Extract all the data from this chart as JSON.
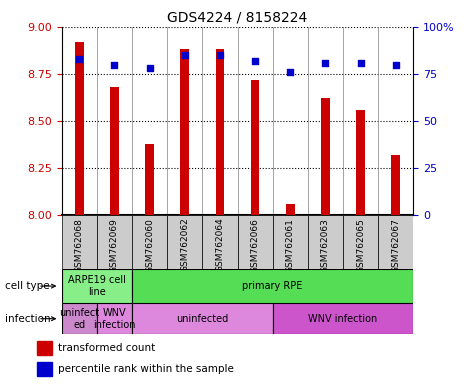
{
  "title": "GDS4224 / 8158224",
  "samples": [
    "GSM762068",
    "GSM762069",
    "GSM762060",
    "GSM762062",
    "GSM762064",
    "GSM762066",
    "GSM762061",
    "GSM762063",
    "GSM762065",
    "GSM762067"
  ],
  "transformed_counts": [
    8.92,
    8.68,
    8.38,
    8.88,
    8.88,
    8.72,
    8.06,
    8.62,
    8.56,
    8.32
  ],
  "percentile_ranks": [
    83,
    80,
    78,
    85,
    85,
    82,
    76,
    81,
    81,
    80
  ],
  "ylim": [
    8.0,
    9.0
  ],
  "y2lim": [
    0,
    100
  ],
  "y_ticks": [
    8.0,
    8.25,
    8.5,
    8.75,
    9.0
  ],
  "y2_ticks": [
    0,
    25,
    50,
    75,
    100
  ],
  "y2_labels": [
    "0",
    "25",
    "50",
    "75",
    "100%"
  ],
  "bar_color": "#cc0000",
  "dot_color": "#0000cc",
  "bar_bottom": 8.0,
  "cell_type_groups": [
    {
      "label": "ARPE19 cell\nline",
      "start": 0,
      "end": 2,
      "color": "#88ee88"
    },
    {
      "label": "primary RPE",
      "start": 2,
      "end": 10,
      "color": "#55dd55"
    }
  ],
  "infection_groups": [
    {
      "label": "uninfect\ned",
      "start": 0,
      "end": 1,
      "color": "#cc88cc"
    },
    {
      "label": "WNV\ninfection",
      "start": 1,
      "end": 2,
      "color": "#dd88dd"
    },
    {
      "label": "uninfected",
      "start": 2,
      "end": 6,
      "color": "#dd88dd"
    },
    {
      "label": "WNV infection",
      "start": 6,
      "end": 10,
      "color": "#cc55cc"
    }
  ],
  "legend_items": [
    {
      "label": "transformed count",
      "color": "#cc0000"
    },
    {
      "label": "percentile rank within the sample",
      "color": "#0000cc"
    }
  ],
  "label_cell_type": "cell type",
  "label_infection": "infection",
  "tick_label_color_left": "#cc0000",
  "tick_label_color_right": "#0000cc",
  "xtick_bg_color": "#cccccc"
}
